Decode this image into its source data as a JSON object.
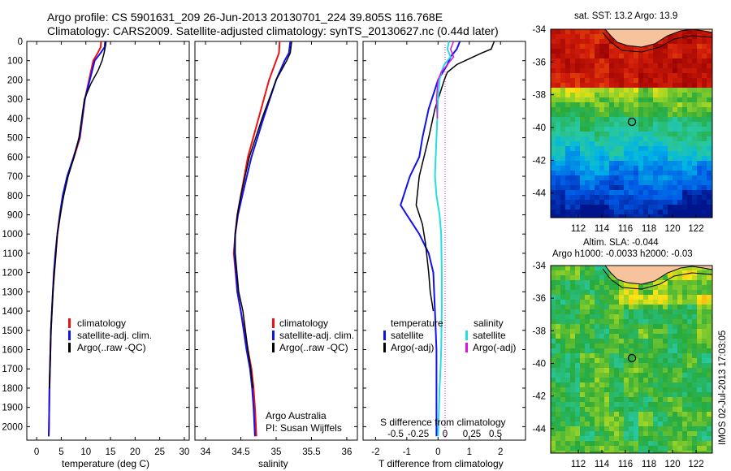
{
  "header": {
    "title_line1": "Argo profile: CS 5901631_209 26-Jun-2013 20130701_224 39.805S 116.768E",
    "title_line2": "Climatology: CARS2009. Satellite-adjusted climatology: synTS_20130627.nc (0.44d later)"
  },
  "depth_ticks": [
    "0",
    "100",
    "200",
    "300",
    "400",
    "500",
    "600",
    "700",
    "800",
    "900",
    "1000",
    "1100",
    "1200",
    "1300",
    "1400",
    "1500",
    "1600",
    "1700",
    "1800",
    "1900",
    "2000"
  ],
  "panels": {
    "temperature": {
      "xlabel": "temperature (deg C)",
      "xticks": [
        "0",
        "5",
        "10",
        "15",
        "20",
        "25",
        "30"
      ],
      "legend": [
        "climatology",
        "satellite-adj. clim.",
        "Argo(..raw -QC)"
      ]
    },
    "salinity": {
      "xlabel": "salinity",
      "xticks": [
        "34",
        "34.5",
        "35",
        "35.5",
        "36"
      ],
      "legend": [
        "climatology",
        "satellite-adj. clim.",
        "Argo(..raw -QC)"
      ],
      "note1": "Argo Australia",
      "note2": "PI: Susan Wijffels"
    },
    "difference": {
      "xlabel": "T difference from climatology",
      "xticks": [
        "-2",
        "-1",
        "0",
        "1",
        "2"
      ],
      "top_label": "S difference from climatology",
      "top_ticks": [
        "-0.5",
        "-0.25",
        "0",
        "0.25",
        "0.5"
      ],
      "legend_temp_title": "temperature",
      "legend_sal_title": "salinity",
      "legend_satellite": "satellite",
      "legend_argo": "Argo(-adj)"
    }
  },
  "maps": {
    "sst": {
      "title": "sat. SST: 13.2 Argo: 13.9"
    },
    "sla": {
      "title1": "Altim. SLA: -0.044",
      "title2": "Argo h1000: -0.0033 h2000: -0.03"
    },
    "lat_ticks": [
      "-34",
      "-36",
      "-38",
      "-40",
      "-42",
      "-44"
    ],
    "lon_ticks": [
      "112",
      "114",
      "116",
      "118",
      "120",
      "122"
    ],
    "float_position": {
      "lon": 116.768,
      "lat": -39.805
    }
  },
  "footer_stamp": "IMOS 02-Jul-2013 17:03:05",
  "colors": {
    "climatology": "#ee1111",
    "satellite": "#1111ee",
    "argo": "#000000",
    "sal_satellite": "#22e0e0",
    "sal_argo": "#e010e0"
  },
  "chart_data": [
    {
      "type": "line",
      "title": "",
      "xlabel": "temperature (deg C)",
      "ylabel": "",
      "xlim": [
        -2,
        31
      ],
      "ylim": [
        2070,
        0
      ],
      "series": [
        {
          "name": "climatology",
          "x": [
            13.1,
            13.0,
            12.4,
            11.5,
            9.8,
            8.8,
            7.6,
            6.3,
            5.4,
            4.8,
            4.2,
            3.9,
            3.6,
            3.3,
            3.1,
            2.9,
            2.8,
            2.7,
            2.6,
            2.55,
            2.5,
            2.45
          ],
          "y": [
            0,
            30,
            60,
            100,
            300,
            500,
            600,
            700,
            800,
            900,
            1000,
            1100,
            1200,
            1300,
            1400,
            1500,
            1600,
            1700,
            1800,
            1900,
            2000,
            2050
          ]
        },
        {
          "name": "satellite-adj. clim.",
          "x": [
            13.9,
            13.8,
            13.0,
            11.8,
            9.8,
            8.7,
            7.5,
            6.2,
            5.3,
            4.7,
            4.2,
            3.8,
            3.5,
            3.3,
            3.1,
            2.9,
            2.8,
            2.7,
            2.6,
            2.55,
            2.5,
            2.45
          ],
          "y": [
            0,
            30,
            60,
            100,
            300,
            500,
            600,
            700,
            800,
            900,
            1000,
            1100,
            1200,
            1300,
            1400,
            1500,
            1600,
            1700,
            1800,
            1900,
            2000,
            2050
          ]
        },
        {
          "name": "Argo(..raw -QC)",
          "x": [
            14.1,
            14.0,
            13.7,
            13.3,
            12.5,
            11.0,
            9.7,
            8.6,
            7.6,
            6.4,
            5.5,
            4.8,
            4.2,
            3.9,
            3.6,
            3.3,
            3.1,
            2.9,
            2.8,
            2.7,
            2.6
          ],
          "y": [
            0,
            20,
            60,
            100,
            150,
            220,
            300,
            500,
            600,
            700,
            800,
            900,
            1000,
            1100,
            1200,
            1300,
            1400,
            1500,
            1600,
            1700,
            1800
          ]
        }
      ]
    },
    {
      "type": "line",
      "title": "",
      "xlabel": "salinity",
      "ylabel": "",
      "xlim": [
        33.85,
        36.15
      ],
      "ylim": [
        2070,
        0
      ],
      "series": [
        {
          "name": "climatology",
          "x": [
            35.05,
            35.04,
            35.0,
            34.9,
            34.75,
            34.6,
            34.5,
            34.45,
            34.42,
            34.4,
            34.45,
            34.5,
            34.6,
            34.65,
            34.68,
            34.7,
            34.72
          ],
          "y": [
            0,
            60,
            100,
            200,
            400,
            600,
            800,
            900,
            1000,
            1100,
            1300,
            1400,
            1600,
            1700,
            1800,
            1900,
            2050
          ]
        },
        {
          "name": "satellite-adj. clim.",
          "x": [
            35.2,
            35.18,
            35.12,
            35.0,
            34.82,
            34.65,
            34.52,
            34.46,
            34.42,
            34.41,
            34.45,
            34.5,
            34.58,
            34.63,
            34.66,
            34.68,
            34.7
          ],
          "y": [
            0,
            60,
            100,
            200,
            400,
            600,
            800,
            900,
            1000,
            1100,
            1300,
            1400,
            1600,
            1700,
            1800,
            1900,
            2050
          ]
        },
        {
          "name": "Argo(..raw -QC)",
          "x": [
            35.22,
            35.2,
            35.15,
            35.0,
            34.8,
            34.62,
            34.5,
            34.45,
            34.42,
            34.42,
            34.47,
            34.53,
            34.6,
            34.64,
            34.67
          ],
          "y": [
            0,
            60,
            100,
            200,
            400,
            600,
            800,
            900,
            1000,
            1100,
            1300,
            1400,
            1600,
            1700,
            1800
          ]
        }
      ]
    },
    {
      "type": "line",
      "title": "",
      "xlabel": "T difference from climatology",
      "ylabel": "",
      "xlim": [
        -2.4,
        2.8
      ],
      "ylim": [
        2070,
        0
      ],
      "series": [
        {
          "name": "temperature satellite",
          "x": [
            0.7,
            0.6,
            0.4,
            0.3,
            0.15,
            0.0,
            -0.1,
            -0.3,
            -0.5,
            -0.6,
            -0.9,
            -1.1,
            -1.2,
            -1.0,
            -0.6,
            -0.3,
            -0.15,
            -0.1,
            -0.05,
            -0.05,
            -0.05
          ],
          "y": [
            0,
            40,
            80,
            120,
            160,
            200,
            250,
            350,
            500,
            600,
            700,
            800,
            850,
            900,
            1000,
            1100,
            1200,
            1400,
            1600,
            1800,
            2050
          ]
        },
        {
          "name": "temperature Argo(-adj)",
          "x": [
            1.8,
            1.7,
            1.4,
            1.0,
            0.6,
            0.3,
            0.2,
            0.1,
            -0.1,
            -0.3,
            -0.6,
            -0.7,
            -0.5,
            -0.4,
            -0.3,
            -0.25,
            -0.2,
            -0.15
          ],
          "y": [
            0,
            40,
            60,
            90,
            120,
            160,
            200,
            250,
            350,
            500,
            700,
            850,
            950,
            1050,
            1200,
            1300,
            1350,
            1400
          ]
        },
        {
          "name": "salinity satellite",
          "x": [
            0.35,
            0.3,
            0.4,
            0.2,
            0.1,
            0.05,
            0.0,
            -0.05,
            -0.1,
            -0.05,
            0.05,
            0.1,
            0.12,
            0.12,
            0.1,
            0.08,
            0.05,
            0.03,
            0.0
          ],
          "y": [
            0,
            40,
            80,
            120,
            160,
            200,
            300,
            500,
            700,
            800,
            900,
            1000,
            1200,
            1400,
            1600,
            1700,
            1800,
            1900,
            2050
          ]
        },
        {
          "name": "salinity Argo(-adj)",
          "x": [
            0.5,
            0.4,
            0.5,
            0.3,
            0.1,
            0.0,
            -0.05,
            -0.02
          ],
          "y": [
            0,
            40,
            80,
            120,
            160,
            200,
            300,
            400
          ]
        }
      ]
    }
  ]
}
